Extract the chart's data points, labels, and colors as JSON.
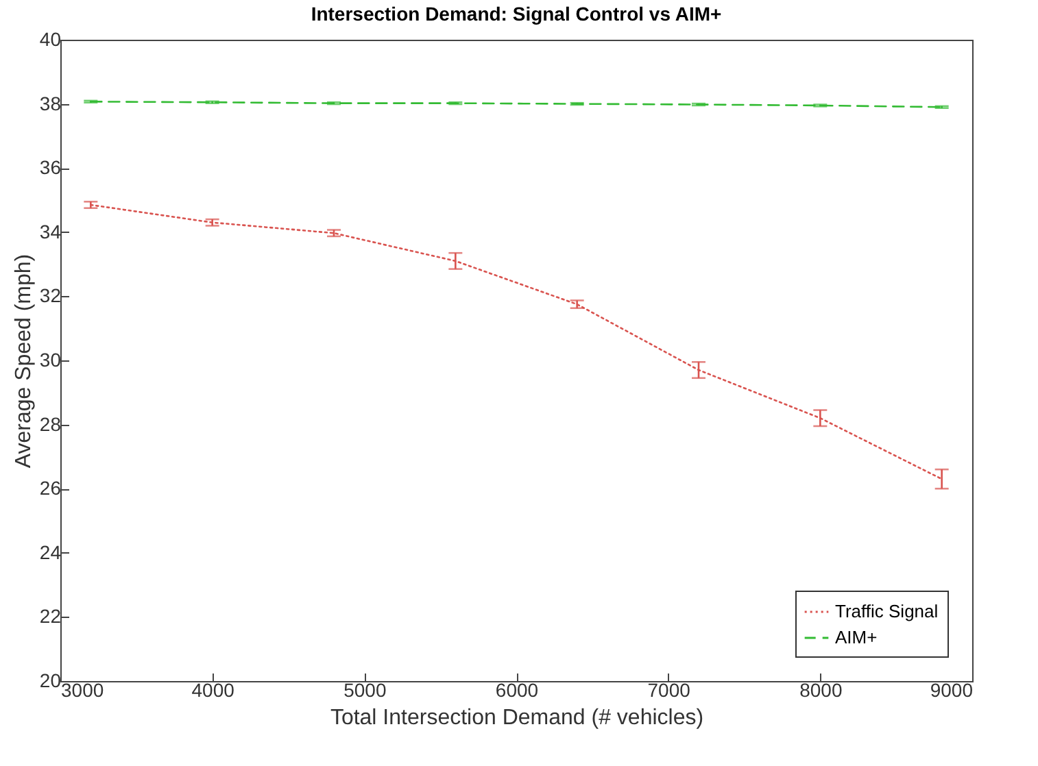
{
  "chart_data": {
    "type": "line",
    "title": "Intersection Demand: Signal Control vs AIM+",
    "xlabel": "Total Intersection Demand (# vehicles)",
    "ylabel": "Average Speed (mph)",
    "x": [
      3200,
      4000,
      4800,
      5600,
      6400,
      7200,
      8000,
      8800
    ],
    "series": [
      {
        "name": "Traffic Signal",
        "color": "#d9534f",
        "line_style": "dotted",
        "values": [
          34.85,
          34.3,
          33.97,
          33.1,
          31.75,
          29.7,
          28.2,
          26.3
        ],
        "errors": [
          0.1,
          0.1,
          0.1,
          0.25,
          0.12,
          0.25,
          0.25,
          0.3
        ]
      },
      {
        "name": "AIM+",
        "color": "#33bb33",
        "line_style": "dashed",
        "values": [
          38.07,
          38.05,
          38.02,
          38.02,
          38.0,
          37.98,
          37.95,
          37.9
        ],
        "errors": [
          0.03,
          0.03,
          0.03,
          0.03,
          0.03,
          0.03,
          0.03,
          0.03
        ]
      }
    ],
    "xlim": [
      3000,
      9000
    ],
    "xticks": [
      3000,
      4000,
      5000,
      6000,
      7000,
      8000,
      9000
    ],
    "ylim": [
      20,
      40
    ],
    "yticks": [
      20,
      22,
      24,
      26,
      28,
      30,
      32,
      34,
      36,
      38,
      40
    ],
    "grid": false,
    "legend": "bottom right",
    "marker": "none"
  }
}
